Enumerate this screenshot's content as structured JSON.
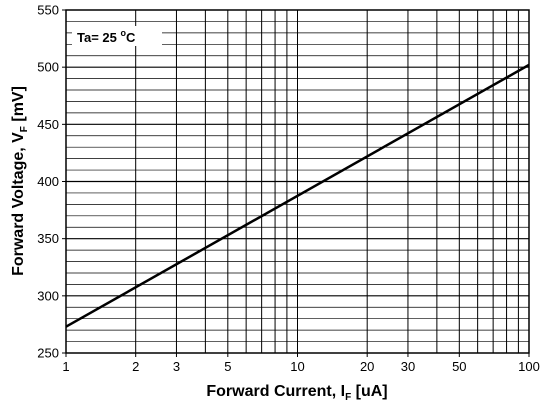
{
  "chart_data": {
    "type": "line",
    "xscale": "log",
    "xlim": [
      1,
      100
    ],
    "ylim": [
      250,
      550
    ],
    "x_ticks": [
      1,
      2,
      3,
      5,
      10,
      20,
      30,
      50,
      100
    ],
    "y_ticks": [
      250,
      300,
      350,
      400,
      450,
      500,
      550
    ],
    "grid": true,
    "series": [
      {
        "x": [
          1,
          100
        ],
        "y": [
          273,
          502
        ]
      }
    ],
    "xlabel": {
      "main": "Forward Current, I",
      "sub": "F",
      "unit": " [uA]"
    },
    "ylabel": {
      "main": "Forward Voltage, V",
      "sub": "F",
      "unit": "  [mV]"
    },
    "annotation": {
      "prefix": "Ta= 25 ",
      "degree": "o",
      "suffix": "C"
    },
    "colors": {
      "line": "#000000",
      "grid": "#000000",
      "background": "#ffffff"
    }
  }
}
